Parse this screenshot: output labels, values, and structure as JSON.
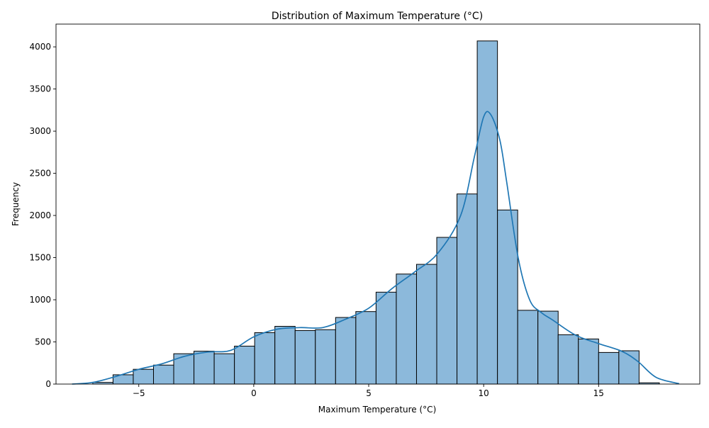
{
  "chart_data": {
    "type": "bar",
    "title": "Distribution of Maximum Temperature (°C)",
    "xlabel": "Maximum Temperature (°C)",
    "ylabel": "Frequency",
    "xlim": [
      -8.6,
      19.4
    ],
    "ylim": [
      0,
      4270
    ],
    "grid": false,
    "legend": "none",
    "bar_color": "#8cb9db",
    "bar_edge_color": "#000000",
    "kde_color": "#1f77b4",
    "x_ticks": [
      {
        "value": -5,
        "label": "−5"
      },
      {
        "value": 0,
        "label": "0"
      },
      {
        "value": 5,
        "label": "5"
      },
      {
        "value": 10,
        "label": "10"
      },
      {
        "value": 15,
        "label": "15"
      }
    ],
    "y_ticks": [
      {
        "value": 0,
        "label": "0"
      },
      {
        "value": 500,
        "label": "500"
      },
      {
        "value": 1000,
        "label": "1000"
      },
      {
        "value": 1500,
        "label": "1500"
      },
      {
        "value": 2000,
        "label": "2000"
      },
      {
        "value": 2500,
        "label": "2500"
      },
      {
        "value": 3000,
        "label": "3000"
      },
      {
        "value": 3500,
        "label": "3500"
      },
      {
        "value": 4000,
        "label": "4000"
      }
    ],
    "bin_edges": [
      -7.0,
      -6.12,
      -5.24,
      -4.36,
      -3.48,
      -2.6,
      -1.72,
      -0.84,
      0.04,
      0.92,
      1.8,
      2.68,
      3.56,
      4.44,
      5.32,
      6.2,
      7.08,
      7.96,
      8.84,
      9.72,
      10.6,
      11.48,
      12.36,
      13.24,
      14.12,
      15.0,
      15.88,
      16.76,
      17.64
    ],
    "bins": [
      {
        "x_start": -7.0,
        "x_end": -6.12,
        "count": 20
      },
      {
        "x_start": -6.12,
        "x_end": -5.24,
        "count": 110
      },
      {
        "x_start": -5.24,
        "x_end": -4.36,
        "count": 175
      },
      {
        "x_start": -4.36,
        "x_end": -3.48,
        "count": 225
      },
      {
        "x_start": -3.48,
        "x_end": -2.6,
        "count": 360
      },
      {
        "x_start": -2.6,
        "x_end": -1.72,
        "count": 390
      },
      {
        "x_start": -1.72,
        "x_end": -0.84,
        "count": 360
      },
      {
        "x_start": -0.84,
        "x_end": 0.04,
        "count": 450
      },
      {
        "x_start": 0.04,
        "x_end": 0.92,
        "count": 610
      },
      {
        "x_start": 0.92,
        "x_end": 1.8,
        "count": 685
      },
      {
        "x_start": 1.8,
        "x_end": 2.68,
        "count": 635
      },
      {
        "x_start": 2.68,
        "x_end": 3.56,
        "count": 645
      },
      {
        "x_start": 3.56,
        "x_end": 4.44,
        "count": 790
      },
      {
        "x_start": 4.44,
        "x_end": 5.32,
        "count": 860
      },
      {
        "x_start": 5.32,
        "x_end": 6.2,
        "count": 1090
      },
      {
        "x_start": 6.2,
        "x_end": 7.08,
        "count": 1305
      },
      {
        "x_start": 7.08,
        "x_end": 7.96,
        "count": 1420
      },
      {
        "x_start": 7.96,
        "x_end": 8.84,
        "count": 1740
      },
      {
        "x_start": 8.84,
        "x_end": 9.72,
        "count": 2255
      },
      {
        "x_start": 9.72,
        "x_end": 10.6,
        "count": 4070
      },
      {
        "x_start": 10.6,
        "x_end": 11.48,
        "count": 2065
      },
      {
        "x_start": 11.48,
        "x_end": 12.36,
        "count": 875
      },
      {
        "x_start": 12.36,
        "x_end": 13.24,
        "count": 865
      },
      {
        "x_start": 13.24,
        "x_end": 14.12,
        "count": 585
      },
      {
        "x_start": 14.12,
        "x_end": 15.0,
        "count": 535
      },
      {
        "x_start": 15.0,
        "x_end": 15.88,
        "count": 375
      },
      {
        "x_start": 15.88,
        "x_end": 16.76,
        "count": 395
      },
      {
        "x_start": 16.76,
        "x_end": 17.64,
        "count": 15
      }
    ],
    "kde": [
      {
        "x": -7.9,
        "y": 0
      },
      {
        "x": -7.0,
        "y": 20
      },
      {
        "x": -6.0,
        "y": 90
      },
      {
        "x": -5.0,
        "y": 175
      },
      {
        "x": -4.0,
        "y": 240
      },
      {
        "x": -3.0,
        "y": 330
      },
      {
        "x": -2.0,
        "y": 380
      },
      {
        "x": -1.0,
        "y": 400
      },
      {
        "x": 0.0,
        "y": 560
      },
      {
        "x": 1.0,
        "y": 650
      },
      {
        "x": 2.0,
        "y": 670
      },
      {
        "x": 3.0,
        "y": 670
      },
      {
        "x": 4.0,
        "y": 770
      },
      {
        "x": 5.0,
        "y": 900
      },
      {
        "x": 6.0,
        "y": 1130
      },
      {
        "x": 7.0,
        "y": 1330
      },
      {
        "x": 8.0,
        "y": 1550
      },
      {
        "x": 9.0,
        "y": 2000
      },
      {
        "x": 9.6,
        "y": 2700
      },
      {
        "x": 10.0,
        "y": 3170
      },
      {
        "x": 10.3,
        "y": 3200
      },
      {
        "x": 10.7,
        "y": 2900
      },
      {
        "x": 11.0,
        "y": 2400
      },
      {
        "x": 11.5,
        "y": 1500
      },
      {
        "x": 12.0,
        "y": 1000
      },
      {
        "x": 12.5,
        "y": 850
      },
      {
        "x": 13.0,
        "y": 760
      },
      {
        "x": 14.0,
        "y": 580
      },
      {
        "x": 15.0,
        "y": 480
      },
      {
        "x": 16.0,
        "y": 390
      },
      {
        "x": 16.7,
        "y": 270
      },
      {
        "x": 17.5,
        "y": 80
      },
      {
        "x": 18.5,
        "y": 5
      }
    ]
  }
}
